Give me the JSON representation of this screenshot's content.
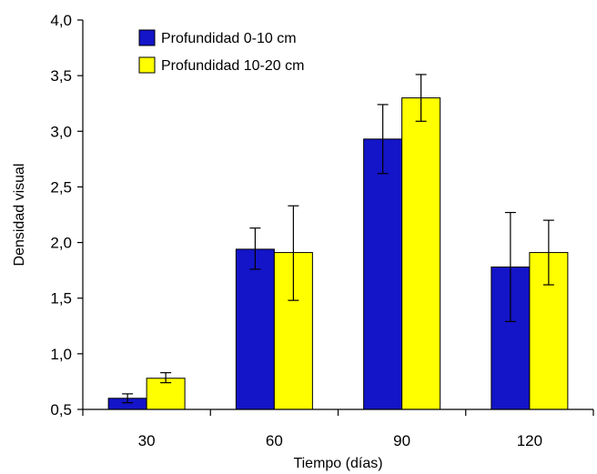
{
  "chart_data": {
    "type": "bar",
    "title": "",
    "xlabel": "Tiempo (días)",
    "ylabel": "Densidad visual",
    "categories": [
      "30",
      "60",
      "90",
      "120"
    ],
    "ylim": [
      0.5,
      4.0
    ],
    "yticks": [
      "0,5",
      "1,0",
      "1,5",
      "2,0",
      "2,5",
      "3,0",
      "3,5",
      "4,0"
    ],
    "ytick_values": [
      0.5,
      1.0,
      1.5,
      2.0,
      2.5,
      3.0,
      3.5,
      4.0
    ],
    "grid": false,
    "legend_position": "top-left",
    "series": [
      {
        "name": "Profundidad 0-10 cm",
        "color": "#1414C8",
        "values": [
          0.6,
          1.94,
          2.93,
          1.78
        ],
        "err_low": [
          0.56,
          1.76,
          2.62,
          1.29
        ],
        "err_high": [
          0.64,
          2.13,
          3.24,
          2.27
        ]
      },
      {
        "name": "Profundidad 10-20 cm",
        "color": "#FFFF00",
        "values": [
          0.78,
          1.91,
          3.3,
          1.91
        ],
        "err_low": [
          0.74,
          1.48,
          3.09,
          1.62
        ],
        "err_high": [
          0.83,
          2.33,
          3.51,
          2.2
        ]
      }
    ]
  }
}
